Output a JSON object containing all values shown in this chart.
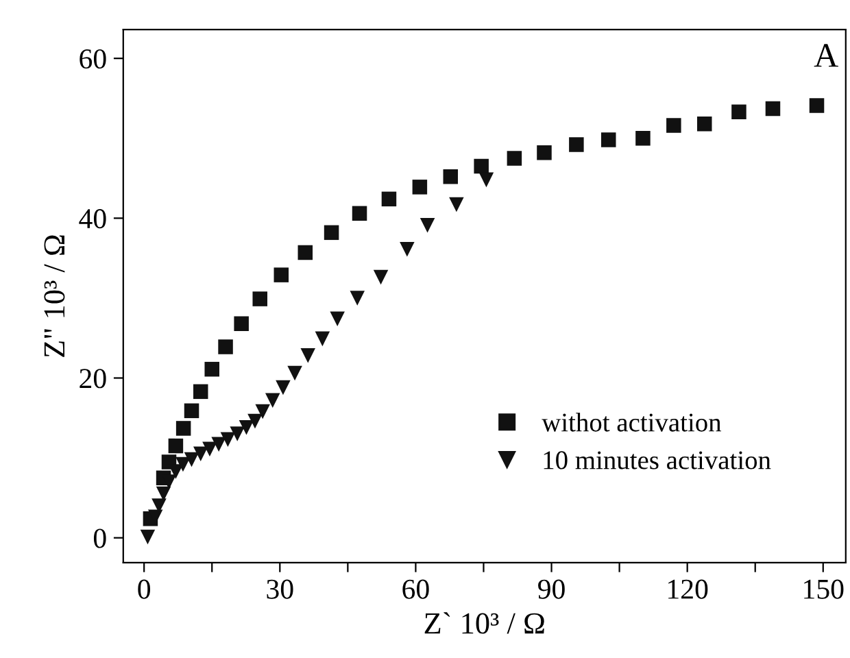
{
  "chart_data": {
    "type": "scatter",
    "xlabel": "Z` 10³ / Ω",
    "ylabel": "Z\" 10³ / Ω",
    "annotations": [
      "A"
    ],
    "xlim": [
      -4.6,
      155
    ],
    "ylim": [
      -3.1,
      63.6
    ],
    "xticks": [
      0,
      {
        "value": 15,
        "label": null
      },
      30,
      {
        "value": 45,
        "label": null
      },
      60,
      {
        "value": 75,
        "label": null
      },
      90,
      {
        "value": 105,
        "label": null
      },
      120,
      {
        "value": 135,
        "label": null
      },
      150
    ],
    "yticks": [
      0,
      20,
      40,
      60
    ],
    "grid": false,
    "legend": "bottom right",
    "series": [
      {
        "name": "withot activation",
        "color": "#111111",
        "marker": "square",
        "x": [
          1.4,
          4.3,
          5.5,
          7.0,
          8.7,
          10.5,
          12.5,
          15.0,
          18.0,
          21.5,
          25.6,
          30.3,
          35.6,
          41.4,
          47.6,
          54.1,
          60.9,
          67.7,
          74.5,
          81.8,
          88.4,
          95.5,
          102.6,
          110.2,
          117.0,
          123.8,
          131.4,
          138.9,
          148.6
        ],
        "values": [
          2.4,
          7.5,
          9.5,
          11.5,
          13.7,
          15.9,
          18.3,
          21.1,
          23.9,
          26.8,
          29.9,
          32.9,
          35.7,
          38.2,
          40.6,
          42.4,
          43.9,
          45.2,
          46.5,
          47.5,
          48.2,
          49.2,
          49.8,
          50.0,
          51.6,
          51.8,
          53.3,
          53.7,
          54.1
        ]
      },
      {
        "name": "10 minutes activation",
        "color": "#111111",
        "marker": "triangle",
        "x": [
          0.8,
          2.5,
          3.3,
          4.3,
          5.5,
          7.0,
          8.6,
          10.5,
          12.5,
          14.5,
          16.5,
          18.5,
          20.6,
          22.6,
          24.5,
          26.2,
          28.4,
          30.7,
          33.3,
          36.2,
          39.4,
          42.7,
          47.1,
          52.3,
          58.1,
          62.6,
          69.0,
          75.6
        ],
        "values": [
          0.1,
          2.6,
          4.0,
          5.5,
          7.0,
          8.3,
          9.2,
          9.8,
          10.5,
          11.1,
          11.7,
          12.3,
          13.0,
          13.8,
          14.6,
          15.8,
          17.2,
          18.8,
          20.6,
          22.8,
          24.9,
          27.4,
          30.0,
          32.6,
          36.1,
          39.1,
          41.7,
          44.8
        ]
      }
    ]
  }
}
